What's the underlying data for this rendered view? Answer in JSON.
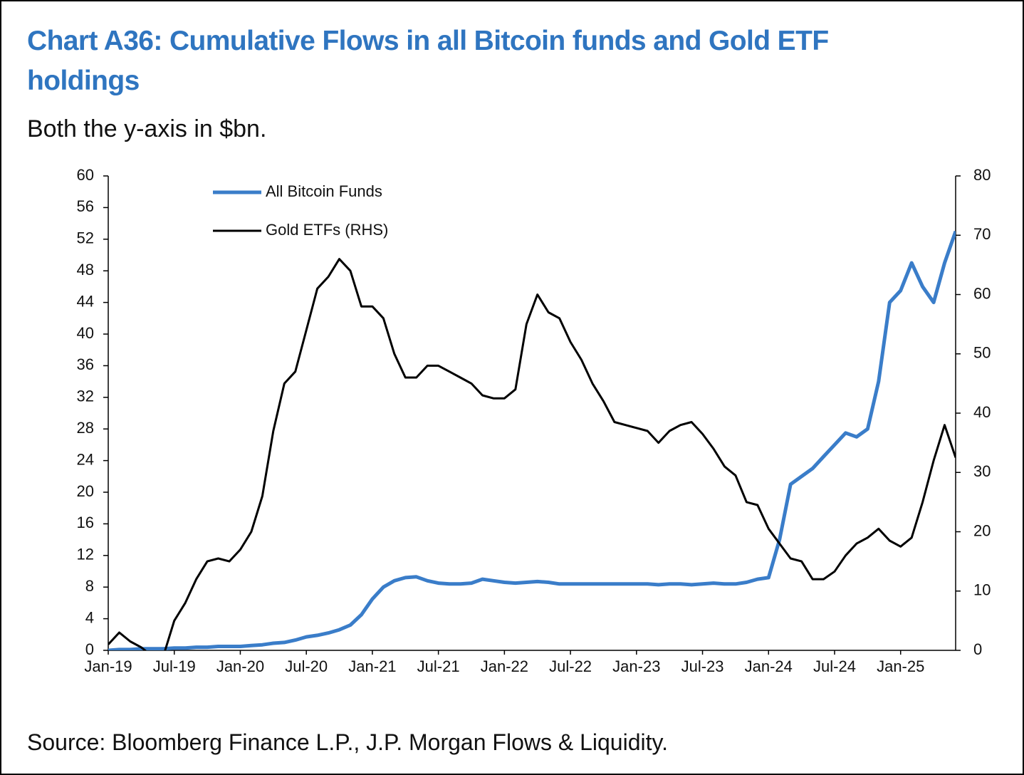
{
  "chart_data": {
    "type": "line",
    "title": "Chart A36: Cumulative Flows in all Bitcoin funds and Gold ETF holdings",
    "subtitle": "Both the y-axis in $bn.",
    "source": "Source: Bloomberg Finance L.P., J.P. Morgan Flows & Liquidity.",
    "x": [
      "2019-01",
      "2019-02",
      "2019-03",
      "2019-04",
      "2019-05",
      "2019-06",
      "2019-07",
      "2019-08",
      "2019-09",
      "2019-10",
      "2019-11",
      "2019-12",
      "2020-01",
      "2020-02",
      "2020-03",
      "2020-04",
      "2020-05",
      "2020-06",
      "2020-07",
      "2020-08",
      "2020-09",
      "2020-10",
      "2020-11",
      "2020-12",
      "2021-01",
      "2021-02",
      "2021-03",
      "2021-04",
      "2021-05",
      "2021-06",
      "2021-07",
      "2021-08",
      "2021-09",
      "2021-10",
      "2021-11",
      "2021-12",
      "2022-01",
      "2022-02",
      "2022-03",
      "2022-04",
      "2022-05",
      "2022-06",
      "2022-07",
      "2022-08",
      "2022-09",
      "2022-10",
      "2022-11",
      "2022-12",
      "2023-01",
      "2023-02",
      "2023-03",
      "2023-04",
      "2023-05",
      "2023-06",
      "2023-07",
      "2023-08",
      "2023-09",
      "2023-10",
      "2023-11",
      "2023-12",
      "2024-01",
      "2024-02",
      "2024-03",
      "2024-04",
      "2024-05",
      "2024-06",
      "2024-07",
      "2024-08",
      "2024-09",
      "2024-10",
      "2024-11",
      "2024-12",
      "2025-01",
      "2025-02",
      "2025-03",
      "2025-04",
      "2025-05",
      "2025-06"
    ],
    "series": [
      {
        "name": "All Bitcoin Funds",
        "color": "#3a7dc9",
        "axis": "y",
        "values": [
          0,
          0.1,
          0.1,
          0.2,
          0.2,
          0.2,
          0.3,
          0.3,
          0.4,
          0.4,
          0.5,
          0.5,
          0.5,
          0.6,
          0.7,
          0.9,
          1.0,
          1.3,
          1.7,
          1.9,
          2.2,
          2.6,
          3.2,
          4.5,
          6.5,
          8.0,
          8.8,
          9.2,
          9.3,
          8.8,
          8.5,
          8.4,
          8.4,
          8.5,
          9.0,
          8.8,
          8.6,
          8.5,
          8.6,
          8.7,
          8.6,
          8.4,
          8.4,
          8.4,
          8.4,
          8.4,
          8.4,
          8.4,
          8.4,
          8.4,
          8.3,
          8.4,
          8.4,
          8.3,
          8.4,
          8.5,
          8.4,
          8.4,
          8.6,
          9.0,
          9.2,
          14,
          21,
          22,
          23,
          24.5,
          26,
          27.5,
          27,
          28,
          34,
          44,
          45.5,
          49,
          46,
          44,
          49,
          53
        ]
      },
      {
        "name": "Gold ETFs (RHS)",
        "color": "#000000",
        "axis": "y2",
        "values": [
          1,
          3,
          1.5,
          0.5,
          -1,
          -1,
          5,
          8,
          12,
          15,
          15.5,
          15,
          17,
          20,
          26,
          37,
          45,
          47,
          54,
          61,
          63,
          66,
          64,
          58,
          58,
          56,
          50,
          46,
          46,
          48,
          48,
          47,
          46,
          45,
          43,
          42.5,
          42.5,
          44,
          55,
          60,
          57,
          56,
          52,
          49,
          45,
          42,
          38.5,
          38,
          37.5,
          37,
          35,
          37,
          38,
          38.5,
          36.5,
          34,
          31,
          29.5,
          25,
          24.5,
          20.5,
          18,
          15.5,
          15,
          12,
          12,
          13.3,
          16,
          18,
          19,
          20.5,
          18.5,
          17.5,
          19,
          25,
          32,
          38,
          32.5
        ]
      }
    ],
    "xlim": [
      "2019-01",
      "2025-06"
    ],
    "xticks": [
      {
        "value": "2019-01",
        "label": "Jan-19"
      },
      {
        "value": "2019-07",
        "label": "Jul-19"
      },
      {
        "value": "2020-01",
        "label": "Jan-20"
      },
      {
        "value": "2020-07",
        "label": "Jul-20"
      },
      {
        "value": "2021-01",
        "label": "Jan-21"
      },
      {
        "value": "2021-07",
        "label": "Jul-21"
      },
      {
        "value": "2022-01",
        "label": "Jan-22"
      },
      {
        "value": "2022-07",
        "label": "Jul-22"
      },
      {
        "value": "2023-01",
        "label": "Jan-23"
      },
      {
        "value": "2023-07",
        "label": "Jul-23"
      },
      {
        "value": "2024-01",
        "label": "Jan-24"
      },
      {
        "value": "2024-07",
        "label": "Jul-24"
      },
      {
        "value": "2025-01",
        "label": "Jan-25"
      }
    ],
    "ylim": [
      0,
      60
    ],
    "yticks": [
      0,
      4,
      8,
      12,
      16,
      20,
      24,
      28,
      32,
      36,
      40,
      44,
      48,
      52,
      56,
      60
    ],
    "y2lim": [
      0,
      80
    ],
    "y2ticks": [
      0,
      10,
      20,
      30,
      40,
      50,
      60,
      70,
      80
    ],
    "legend": "upper-left"
  }
}
